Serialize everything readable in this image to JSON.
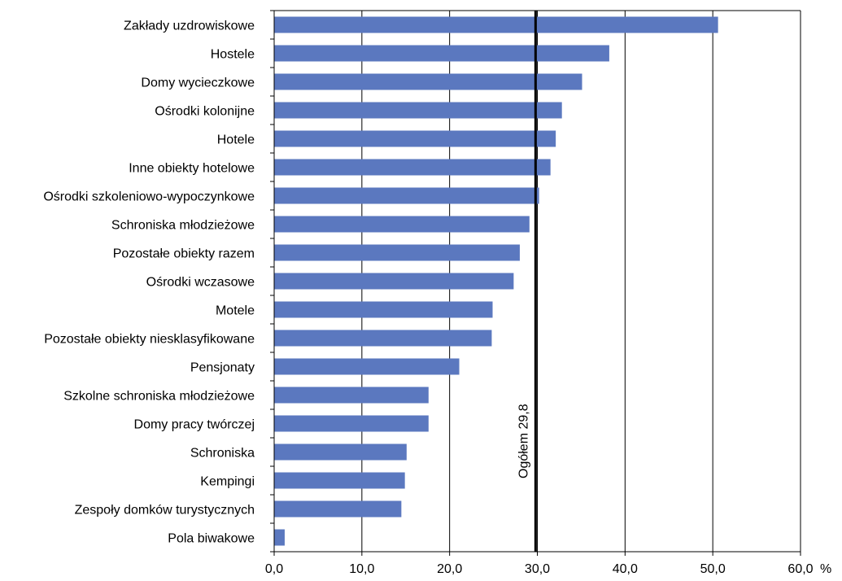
{
  "chart_data": {
    "type": "bar",
    "orientation": "horizontal",
    "categories": [
      "Zakłady uzdrowiskowe",
      "Hostele",
      "Domy wycieczkowe",
      "Ośrodki kolonijne",
      "Hotele",
      "Inne obiekty hotelowe",
      "Ośrodki szkoleniowo-wypoczynkowe",
      "Schroniska młodzieżowe",
      "Pozostałe obiekty razem",
      "Ośrodki wczasowe",
      "Motele",
      "Pozostałe obiekty niesklasyfikowane",
      "Pensjonaty",
      "Szkolne schroniska młodzieżowe",
      "Domy pracy twórczej",
      "Schroniska",
      "Kempingi",
      "Zespoły domków turystycznych",
      "Pola biwakowe"
    ],
    "values": [
      50.6,
      38.2,
      35.1,
      32.8,
      32.1,
      31.5,
      30.2,
      29.1,
      28.0,
      27.3,
      24.9,
      24.8,
      21.1,
      17.6,
      17.6,
      15.1,
      14.9,
      14.5,
      1.2
    ],
    "xlim": [
      0,
      60
    ],
    "x_ticks": [
      "0,0",
      "10,0",
      "20,0",
      "30,0",
      "40,0",
      "50,0",
      "60,0"
    ],
    "x_unit": "%",
    "grid": true,
    "reference_line": {
      "value": 29.8,
      "label": "Ogółem  29,8"
    },
    "colors": {
      "bar": "#5b78bf",
      "reference": "#000000",
      "grid": "#000000"
    }
  }
}
